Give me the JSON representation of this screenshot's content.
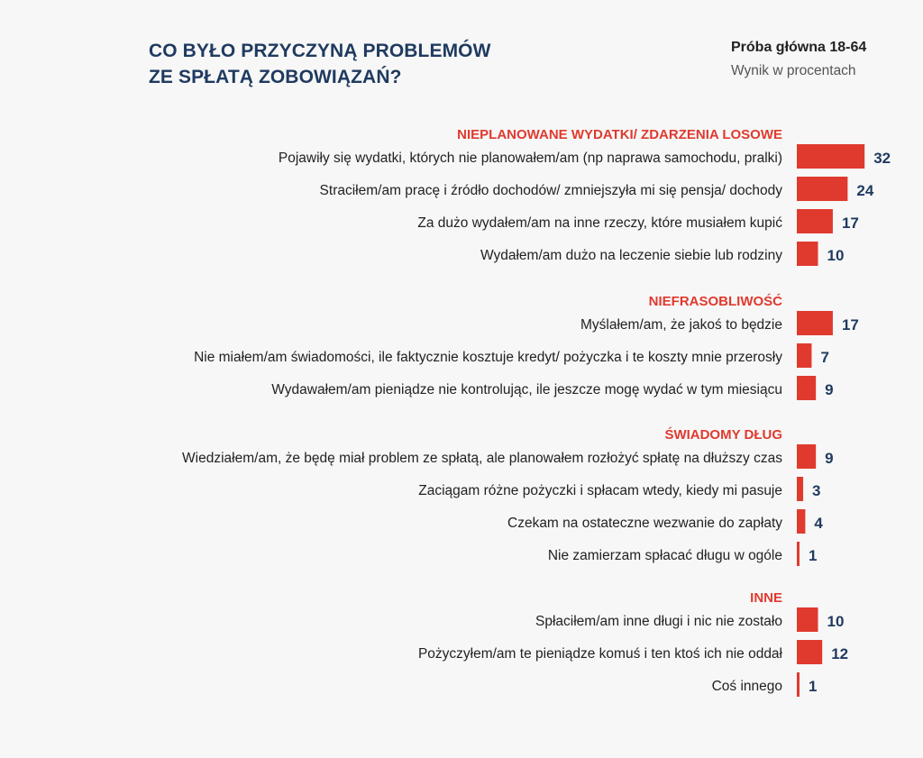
{
  "header": {
    "title_line1": "CO BYŁO PRZYCZYNĄ PROBLEMÓW",
    "title_line2": "ZE SPŁATĄ ZOBOWIĄZAŃ?",
    "sample": "Próba główna 18-64",
    "unit": "Wynik w procentach"
  },
  "colors": {
    "bar": "#e03a2f",
    "category": "#e03a2f",
    "value": "#1f3a5f",
    "title": "#1f3a5f"
  },
  "chart_data": {
    "type": "bar",
    "orientation": "horizontal",
    "title": "CO BYŁO PRZYCZYNĄ PROBLEMÓW ZE SPŁATĄ ZOBOWIĄZAŃ?",
    "subtitle": "Próba główna 18-64",
    "unit": "Wynik w procentach",
    "groups": [
      {
        "name": "NIEPLANOWANE WYDATKI/ ZDARZENIA LOSOWE",
        "items": [
          {
            "label": "Pojawiły się wydatki, których nie planowałem/am (np naprawa samochodu, pralki)",
            "value": 32
          },
          {
            "label": "Straciłem/am pracę i źródło dochodów/ zmniejszyła mi się pensja/ dochody",
            "value": 24
          },
          {
            "label": "Za dużo wydałem/am na inne rzeczy, które musiałem kupić",
            "value": 17
          },
          {
            "label": "Wydałem/am dużo na leczenie siebie lub rodziny",
            "value": 10
          }
        ]
      },
      {
        "name": "NIEFRASOBLIWOŚĆ",
        "items": [
          {
            "label": "Myślałem/am, że jakoś to będzie",
            "value": 17
          },
          {
            "label": "Nie miałem/am świadomości, ile faktycznie kosztuje kredyt/ pożyczka i te koszty mnie przerosły",
            "value": 7
          },
          {
            "label": "Wydawałem/am pieniądze nie kontrolując, ile jeszcze mogę wydać w tym miesiącu",
            "value": 9
          }
        ]
      },
      {
        "name": "ŚWIADOMY DŁUG",
        "items": [
          {
            "label": "Wiedziałem/am, że będę miał problem ze spłatą, ale planowałem rozłożyć spłatę na dłuższy czas",
            "value": 9
          },
          {
            "label": "Zaciągam różne pożyczki i spłacam wtedy, kiedy mi pasuje",
            "value": 3
          },
          {
            "label": "Czekam na ostateczne wezwanie do zapłaty",
            "value": 4
          },
          {
            "label": "Nie zamierzam spłacać długu w ogóle",
            "value": 1
          }
        ]
      },
      {
        "name": "INNE",
        "items": [
          {
            "label": "Spłaciłem/am inne długi i nic nie zostało",
            "value": 10
          },
          {
            "label": "Pożyczyłem/am te pieniądze komuś i ten ktoś ich nie oddał",
            "value": 12
          },
          {
            "label": "Coś innego",
            "value": 1
          }
        ]
      }
    ],
    "grid": false,
    "legend": "none"
  }
}
